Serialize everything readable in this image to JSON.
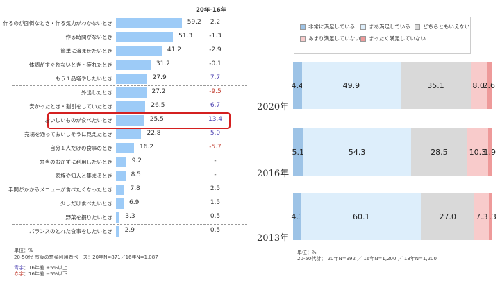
{
  "chart_data": [
    {
      "type": "bar",
      "orientation": "horizontal",
      "diff_header": "20年-16年",
      "categories": [
        "作るのが面倒なとき・作る気力がわかないとき",
        "作る時間がないとき",
        "簡単に済ませたいとき",
        "体調がすぐれないとき・疲れたとき",
        "もう１品増やしたいとき",
        "外出したとき",
        "安かったとき・割引をしていたとき",
        "おいしいものが食べたいとき",
        "売場を通っておいしそうに見えたとき",
        "自分１人だけの食事のとき",
        "弁当のおかずに利用したいとき",
        "家族や知人と集まるとき",
        "手間がかかるメニューが食べたくなったとき",
        "少しだけ食べたいとき",
        "野菜を摂りたいとき",
        "バランスのとれた食事をしたいとき"
      ],
      "values": [
        59.2,
        51.3,
        41.2,
        31.2,
        27.9,
        27.2,
        26.5,
        25.5,
        22.8,
        16.2,
        9.2,
        8.5,
        7.8,
        6.9,
        3.3,
        2.9
      ],
      "value_labels": [
        "59.2",
        "51.3",
        "41.2",
        "31.2",
        "27.9",
        "27.2",
        "26.5",
        "25.5",
        "22.8",
        "16.2",
        "9.2",
        "8.5",
        "7.8",
        "6.9",
        "3.3",
        "2.9"
      ],
      "diffs": [
        "2.2",
        "-1.3",
        "-2.9",
        "-0.1",
        "7.7",
        "-9.5",
        "6.7",
        "13.4",
        "5.0",
        "-5.7",
        "-",
        "-",
        "2.5",
        "1.5",
        "0.5",
        "0.5"
      ],
      "diff_colors": [
        "#333333",
        "#333333",
        "#333333",
        "#333333",
        "#4a3fb0",
        "#c0392b",
        "#4a3fb0",
        "#4a3fb0",
        "#4a3fb0",
        "#c0392b",
        "#333333",
        "#333333",
        "#333333",
        "#333333",
        "#333333",
        "#333333"
      ],
      "highlighted": "おいしいものが食べたいとき",
      "bar_color": "#9DCBF7",
      "notes": [
        "単位：%",
        "20-50代 市販の惣菜利用者ベース：20年N=871／16年N=1,087"
      ],
      "legend_notes": [
        {
          "key": "青字",
          "text": "：16年差 +5%以上",
          "color": "#4a3fb0"
        },
        {
          "key": "赤字",
          "text": "：16年差 −5%以下",
          "color": "#c0392b"
        }
      ]
    },
    {
      "type": "bar",
      "orientation": "horizontal",
      "stacked": true,
      "xlim": [
        0,
        100
      ],
      "categories": [
        "2020年",
        "2016年",
        "2013年"
      ],
      "series": [
        {
          "name": "非常に満足している",
          "color": "#9DC3E6",
          "values": [
            4.4,
            5.1,
            4.3
          ]
        },
        {
          "name": "まあ満足している",
          "color": "#DDEEFB",
          "values": [
            49.9,
            54.3,
            60.1
          ]
        },
        {
          "name": "どちらともいえない",
          "color": "#D9D9D9",
          "values": [
            35.1,
            28.5,
            27.0
          ]
        },
        {
          "name": "あまり満足していない",
          "color": "#F8CBCB",
          "values": [
            8.0,
            10.3,
            7.3
          ]
        },
        {
          "name": "まったく満足していない",
          "color": "#EE9A9A",
          "values": [
            2.6,
            1.9,
            1.3
          ]
        }
      ],
      "legend_position": "top",
      "notes": [
        "単位：%",
        "20-50代計： 20年N=992 ／ 16年N=1,200 ／ 13年N=1,200"
      ]
    }
  ]
}
